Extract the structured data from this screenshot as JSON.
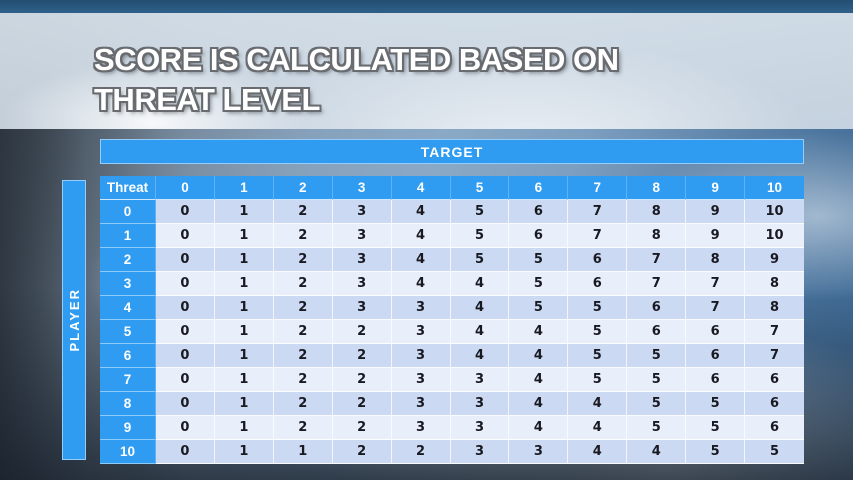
{
  "slide": {
    "title_line1": "SCORE IS CALCULATED BASED ON",
    "title_line2": "THREAT LEVEL"
  },
  "table": {
    "target_label": "TARGET",
    "player_label": "PLAYER",
    "corner_label": "Threat",
    "column_headers": [
      "0",
      "1",
      "2",
      "3",
      "4",
      "5",
      "6",
      "7",
      "8",
      "9",
      "10"
    ],
    "rows": [
      {
        "label": "0",
        "values": [
          0,
          1,
          2,
          3,
          4,
          5,
          6,
          7,
          8,
          9,
          10
        ]
      },
      {
        "label": "1",
        "values": [
          0,
          1,
          2,
          3,
          4,
          5,
          6,
          7,
          8,
          9,
          10
        ]
      },
      {
        "label": "2",
        "values": [
          0,
          1,
          2,
          3,
          4,
          5,
          5,
          6,
          7,
          8,
          9
        ]
      },
      {
        "label": "3",
        "values": [
          0,
          1,
          2,
          3,
          4,
          4,
          5,
          6,
          7,
          7,
          8
        ]
      },
      {
        "label": "4",
        "values": [
          0,
          1,
          2,
          3,
          3,
          4,
          5,
          5,
          6,
          7,
          8
        ]
      },
      {
        "label": "5",
        "values": [
          0,
          1,
          2,
          2,
          3,
          4,
          4,
          5,
          6,
          6,
          7
        ]
      },
      {
        "label": "6",
        "values": [
          0,
          1,
          2,
          2,
          3,
          4,
          4,
          5,
          5,
          6,
          7
        ]
      },
      {
        "label": "7",
        "values": [
          0,
          1,
          2,
          2,
          3,
          3,
          4,
          5,
          5,
          6,
          6
        ]
      },
      {
        "label": "8",
        "values": [
          0,
          1,
          2,
          2,
          3,
          3,
          4,
          4,
          5,
          5,
          6
        ]
      },
      {
        "label": "9",
        "values": [
          0,
          1,
          2,
          2,
          3,
          3,
          4,
          4,
          5,
          5,
          6
        ]
      },
      {
        "label": "10",
        "values": [
          0,
          1,
          1,
          2,
          2,
          3,
          3,
          4,
          4,
          5,
          5
        ]
      }
    ]
  },
  "colors": {
    "accent_blue": "#2f9cf2",
    "row_dark": "#cbd9f2",
    "row_light": "#e9eefb",
    "top_strip": "#2a5679",
    "title_band": "#d4dde6",
    "title_text": "#ffffff",
    "data_text": "#191922"
  }
}
